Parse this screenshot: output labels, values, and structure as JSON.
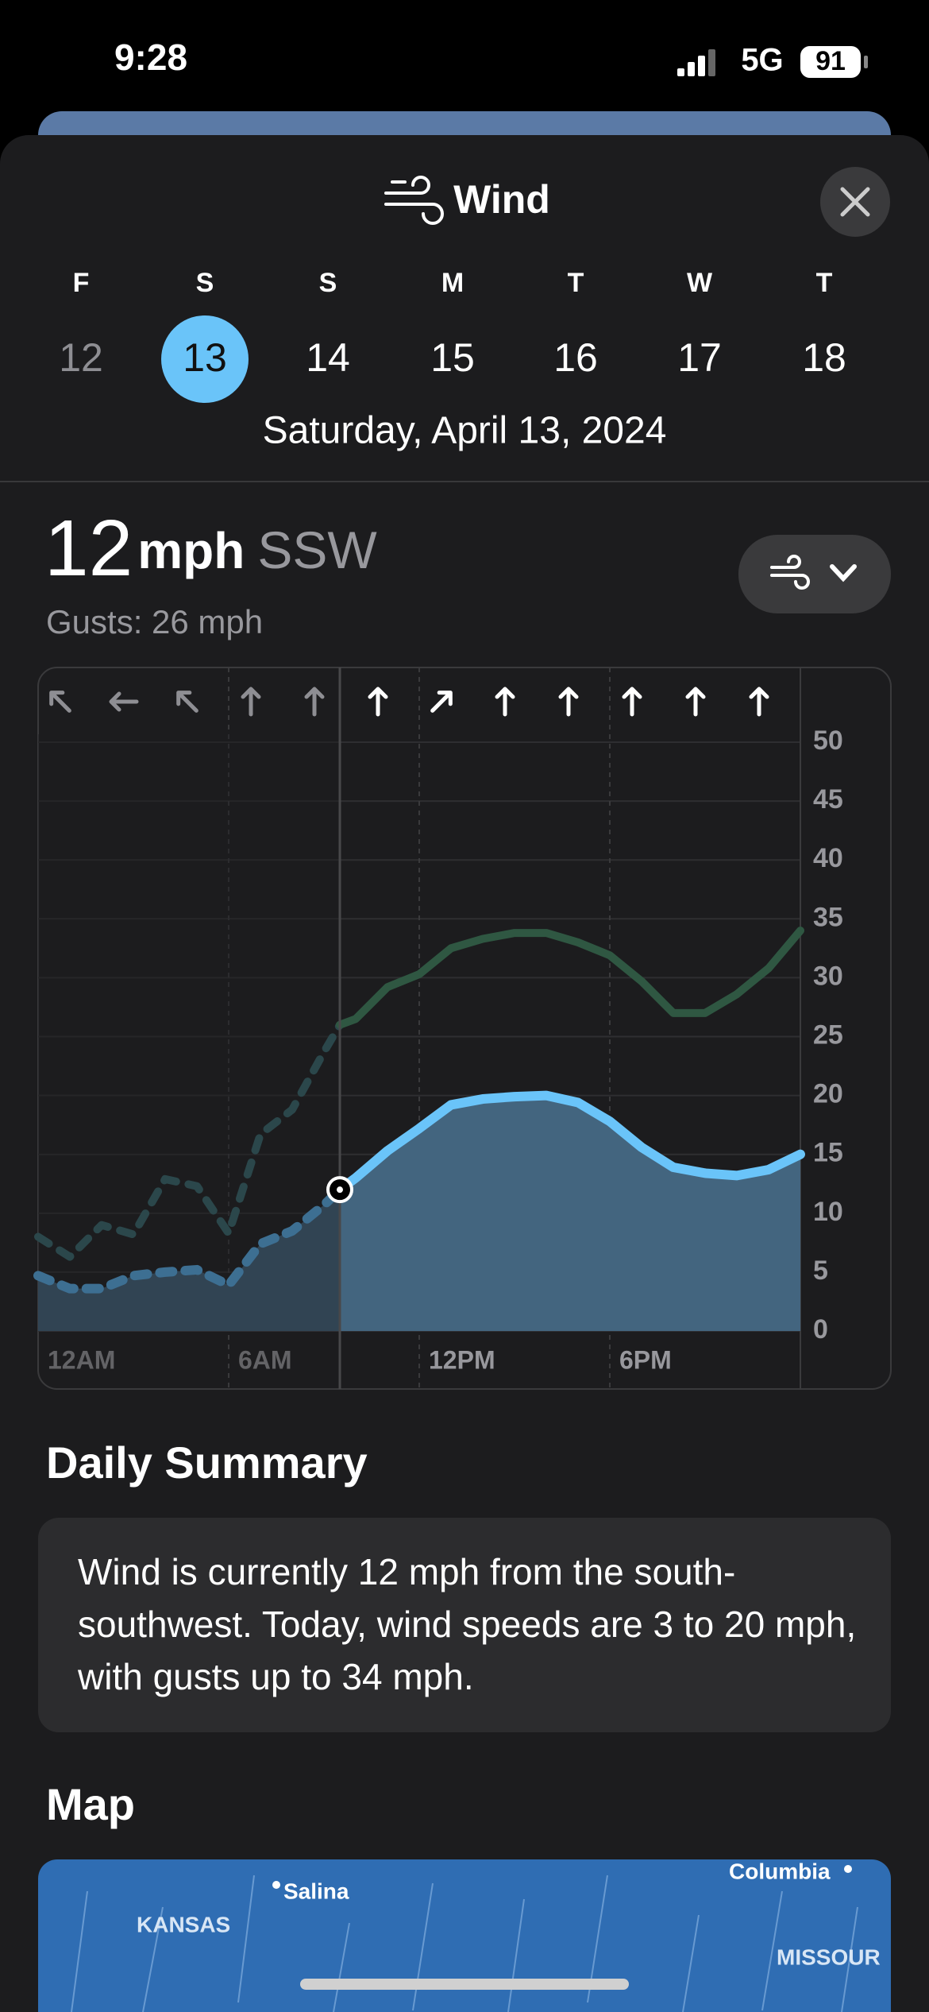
{
  "status": {
    "time": "9:28",
    "network": "5G",
    "battery": "91"
  },
  "header": {
    "title": "Wind"
  },
  "days": [
    {
      "letter": "F",
      "date": "12"
    },
    {
      "letter": "S",
      "date": "13"
    },
    {
      "letter": "S",
      "date": "14"
    },
    {
      "letter": "M",
      "date": "15"
    },
    {
      "letter": "T",
      "date": "16"
    },
    {
      "letter": "W",
      "date": "17"
    },
    {
      "letter": "T",
      "date": "18"
    }
  ],
  "selected_date": "Saturday, April 13, 2024",
  "current": {
    "speed": "12",
    "unit": "mph",
    "direction": "SSW",
    "gusts": "Gusts: 26 mph"
  },
  "chart_data": {
    "type": "line",
    "x": [
      0,
      1,
      2,
      3,
      4,
      5,
      6,
      7,
      8,
      9,
      9.5,
      10,
      11,
      12,
      13,
      14,
      15,
      16,
      17,
      18,
      19,
      20,
      21,
      22,
      23,
      24
    ],
    "series": [
      {
        "name": "Gusts",
        "color": "#2f5742",
        "values": [
          8,
          6.3,
          9,
          8.2,
          12.9,
          12.3,
          8.3,
          16.7,
          18.8,
          23.7,
          26,
          26.5,
          29.2,
          30.3,
          32.5,
          33.3,
          33.8,
          33.8,
          33,
          31.9,
          29.7,
          27,
          27,
          28.6,
          30.8,
          34
        ]
      },
      {
        "name": "Wind",
        "color": "#6ac4f9",
        "values": [
          4.7,
          3.6,
          3.6,
          4.7,
          5,
          5.2,
          3.9,
          7.4,
          8.5,
          10.7,
          12,
          13,
          15.3,
          17.2,
          19.2,
          19.7,
          19.9,
          20,
          19.4,
          17.8,
          15.6,
          13.9,
          13.4,
          13.2,
          13.7,
          15
        ]
      }
    ],
    "current_x": 9.5,
    "xlim": [
      0,
      24
    ],
    "xticks": [
      {
        "value": 0,
        "label": "12AM"
      },
      {
        "value": 6,
        "label": "6AM"
      },
      {
        "value": 12,
        "label": "12PM"
      },
      {
        "value": 18,
        "label": "6PM"
      }
    ],
    "ylim": [
      0,
      50
    ],
    "yticks": [
      0,
      5,
      10,
      15,
      20,
      25,
      30,
      35,
      40,
      45,
      50
    ],
    "grid": true
  },
  "summary": {
    "title": "Daily Summary",
    "text": "Wind is currently 12 mph from the south-southwest. Today, wind speeds are 3 to 20 mph, with gusts up to 34 mph."
  },
  "map": {
    "title": "Map",
    "labels": [
      "Salina",
      "KANSAS",
      "Columbia",
      "MISSOUR"
    ]
  }
}
